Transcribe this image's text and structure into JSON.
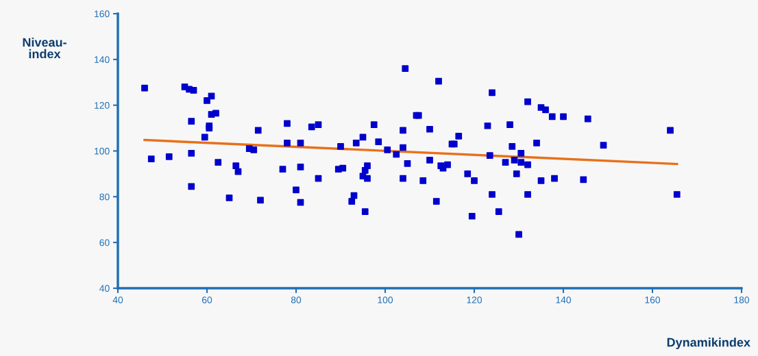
{
  "chart_data": {
    "type": "scatter",
    "xlabel": "Dynamikindex",
    "ylabel": "Niveau-\nindex",
    "xlim": [
      40,
      180
    ],
    "xticks": [
      40,
      60,
      80,
      100,
      120,
      140,
      160,
      180
    ],
    "ylim": [
      40,
      160
    ],
    "yticks": [
      40,
      60,
      80,
      100,
      120,
      140,
      160
    ],
    "grid": false,
    "legend": false,
    "marker": "square",
    "series": [
      {
        "color": "#0000cc",
        "x": [
          46,
          47.5,
          51.5,
          55,
          56,
          57,
          56.5,
          56.5,
          56.5,
          59.5,
          60,
          60.5,
          60.5,
          61,
          61,
          62,
          62.5,
          65,
          66.5,
          67,
          69.5,
          70.5,
          71.5,
          72,
          77,
          78,
          78,
          80,
          81,
          81,
          81,
          83.5,
          85,
          85,
          89.5,
          90,
          90.5,
          92.5,
          93,
          93.5,
          95,
          95,
          95.5,
          95.5,
          96,
          96,
          97.5,
          98.5,
          100.5,
          102.5,
          104,
          104,
          104,
          104.5,
          105,
          107,
          107.5,
          108.5,
          110,
          110,
          111.5,
          112,
          112.5,
          113,
          114,
          115,
          115.5,
          116.5,
          118.5,
          119.5,
          120,
          123,
          123.5,
          124,
          124,
          125.5,
          127,
          128,
          128.5,
          129,
          129.5,
          130,
          130.5,
          130.5,
          132,
          132,
          132,
          134,
          135,
          135,
          136,
          137.5,
          138,
          140,
          144.5,
          145.5,
          149,
          164,
          165.5
        ],
        "values": [
          127.5,
          96.5,
          97.5,
          128,
          127,
          126.5,
          113,
          99,
          84.5,
          106,
          122,
          111,
          110,
          116,
          124,
          116.5,
          95,
          79.5,
          93.5,
          91,
          101,
          100.5,
          109,
          78.5,
          92,
          112,
          103.5,
          83,
          103.5,
          93,
          77.5,
          110.5,
          111.5,
          88,
          92,
          102,
          92.5,
          78,
          80.5,
          103.5,
          106,
          89,
          91.5,
          73.5,
          88,
          93.5,
          111.5,
          104,
          100.5,
          98.5,
          101.5,
          109,
          88,
          136,
          94.5,
          115.5,
          115.5,
          87,
          109.5,
          96,
          78,
          130.5,
          93.5,
          92.5,
          94,
          103,
          103,
          106.5,
          90,
          71.5,
          87,
          111,
          98,
          125.5,
          81,
          73.5,
          95,
          111.5,
          102,
          96,
          90,
          63.5,
          99,
          95,
          121.5,
          94,
          81,
          103.5,
          119,
          87,
          118,
          115,
          88,
          115,
          87.5,
          114,
          102.5,
          109,
          81
        ]
      },
      {
        "type": "line",
        "color": "#e8701a",
        "marker": "none",
        "x": [
          46,
          165.5
        ],
        "values": [
          104.8,
          94.3
        ]
      }
    ]
  }
}
